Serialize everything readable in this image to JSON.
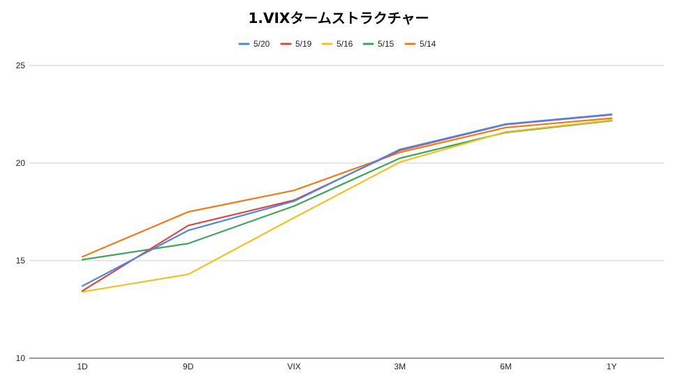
{
  "chart_data": {
    "type": "line",
    "title": "1.VIXタームストラクチャー",
    "categories": [
      "1D",
      "9D",
      "VIX",
      "3M",
      "6M",
      "1Y"
    ],
    "ylim": [
      10,
      25
    ],
    "yticks": [
      10,
      15,
      20,
      25
    ],
    "grid": true,
    "legend_position": "top",
    "series": [
      {
        "name": "5/20",
        "color": "#4a86e8",
        "values": [
          13.7,
          16.55,
          18.05,
          20.7,
          22.0,
          22.5
        ]
      },
      {
        "name": "5/19",
        "color": "#e0463c",
        "values": [
          13.45,
          16.8,
          18.1,
          20.65,
          21.98,
          22.48
        ]
      },
      {
        "name": "5/16",
        "color": "#f4c01e",
        "values": [
          13.4,
          14.3,
          17.2,
          20.05,
          21.6,
          22.2
        ]
      },
      {
        "name": "5/15",
        "color": "#3da55a",
        "values": [
          15.05,
          15.88,
          17.8,
          20.25,
          21.57,
          22.17
        ]
      },
      {
        "name": "5/14",
        "color": "#f07a14",
        "values": [
          15.2,
          17.5,
          18.6,
          20.55,
          21.82,
          22.3
        ]
      }
    ]
  }
}
